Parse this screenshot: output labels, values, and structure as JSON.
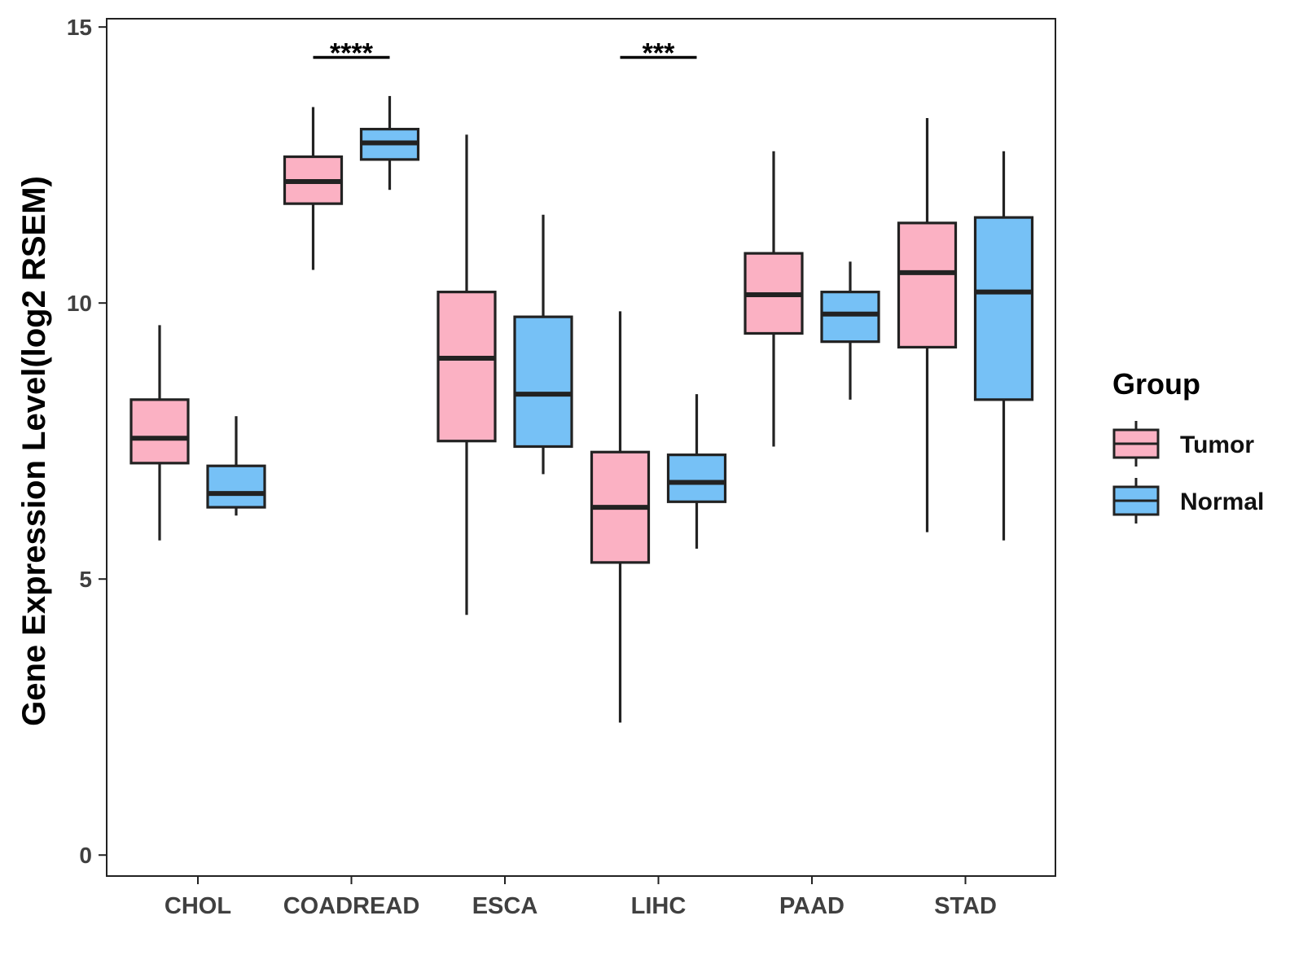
{
  "chart_data": {
    "type": "boxplot",
    "title": "",
    "xlabel": "",
    "ylabel": "Gene Expression Level(log2 RSEM)",
    "ylim": [
      0,
      15
    ],
    "yticks": [
      0,
      5,
      10,
      15
    ],
    "categories": [
      "CHOL",
      "COADREAD",
      "ESCA",
      "LIHC",
      "PAAD",
      "STAD"
    ],
    "legend": {
      "title": "Group",
      "position": "right"
    },
    "series": [
      {
        "name": "Tumor",
        "color": "#FBB1C3",
        "boxes": [
          {
            "min": 5.7,
            "q1": 7.1,
            "median": 7.55,
            "q3": 8.25,
            "max": 9.6
          },
          {
            "min": 10.6,
            "q1": 11.8,
            "median": 12.2,
            "q3": 12.65,
            "max": 13.55
          },
          {
            "min": 4.35,
            "q1": 7.5,
            "median": 9.0,
            "q3": 10.2,
            "max": 13.05
          },
          {
            "min": 2.4,
            "q1": 5.3,
            "median": 6.3,
            "q3": 7.3,
            "max": 9.85
          },
          {
            "min": 7.4,
            "q1": 9.45,
            "median": 10.15,
            "q3": 10.9,
            "max": 12.75
          },
          {
            "min": 5.85,
            "q1": 9.2,
            "median": 10.55,
            "q3": 11.45,
            "max": 13.35
          }
        ]
      },
      {
        "name": "Normal",
        "color": "#76C1F6",
        "boxes": [
          {
            "min": 6.15,
            "q1": 6.3,
            "median": 6.55,
            "q3": 7.05,
            "max": 7.95
          },
          {
            "min": 12.05,
            "q1": 12.6,
            "median": 12.9,
            "q3": 13.15,
            "max": 13.75
          },
          {
            "min": 6.9,
            "q1": 7.4,
            "median": 8.35,
            "q3": 9.75,
            "max": 11.6
          },
          {
            "min": 5.55,
            "q1": 6.4,
            "median": 6.75,
            "q3": 7.25,
            "max": 8.35
          },
          {
            "min": 8.25,
            "q1": 9.3,
            "median": 9.8,
            "q3": 10.2,
            "max": 10.75
          },
          {
            "min": 5.7,
            "q1": 8.25,
            "median": 10.2,
            "q3": 11.55,
            "max": 12.75
          }
        ]
      }
    ],
    "annotations": [
      {
        "category": "COADREAD",
        "text": "****",
        "y": 14.45
      },
      {
        "category": "LIHC",
        "text": "***",
        "y": 14.45
      }
    ]
  }
}
